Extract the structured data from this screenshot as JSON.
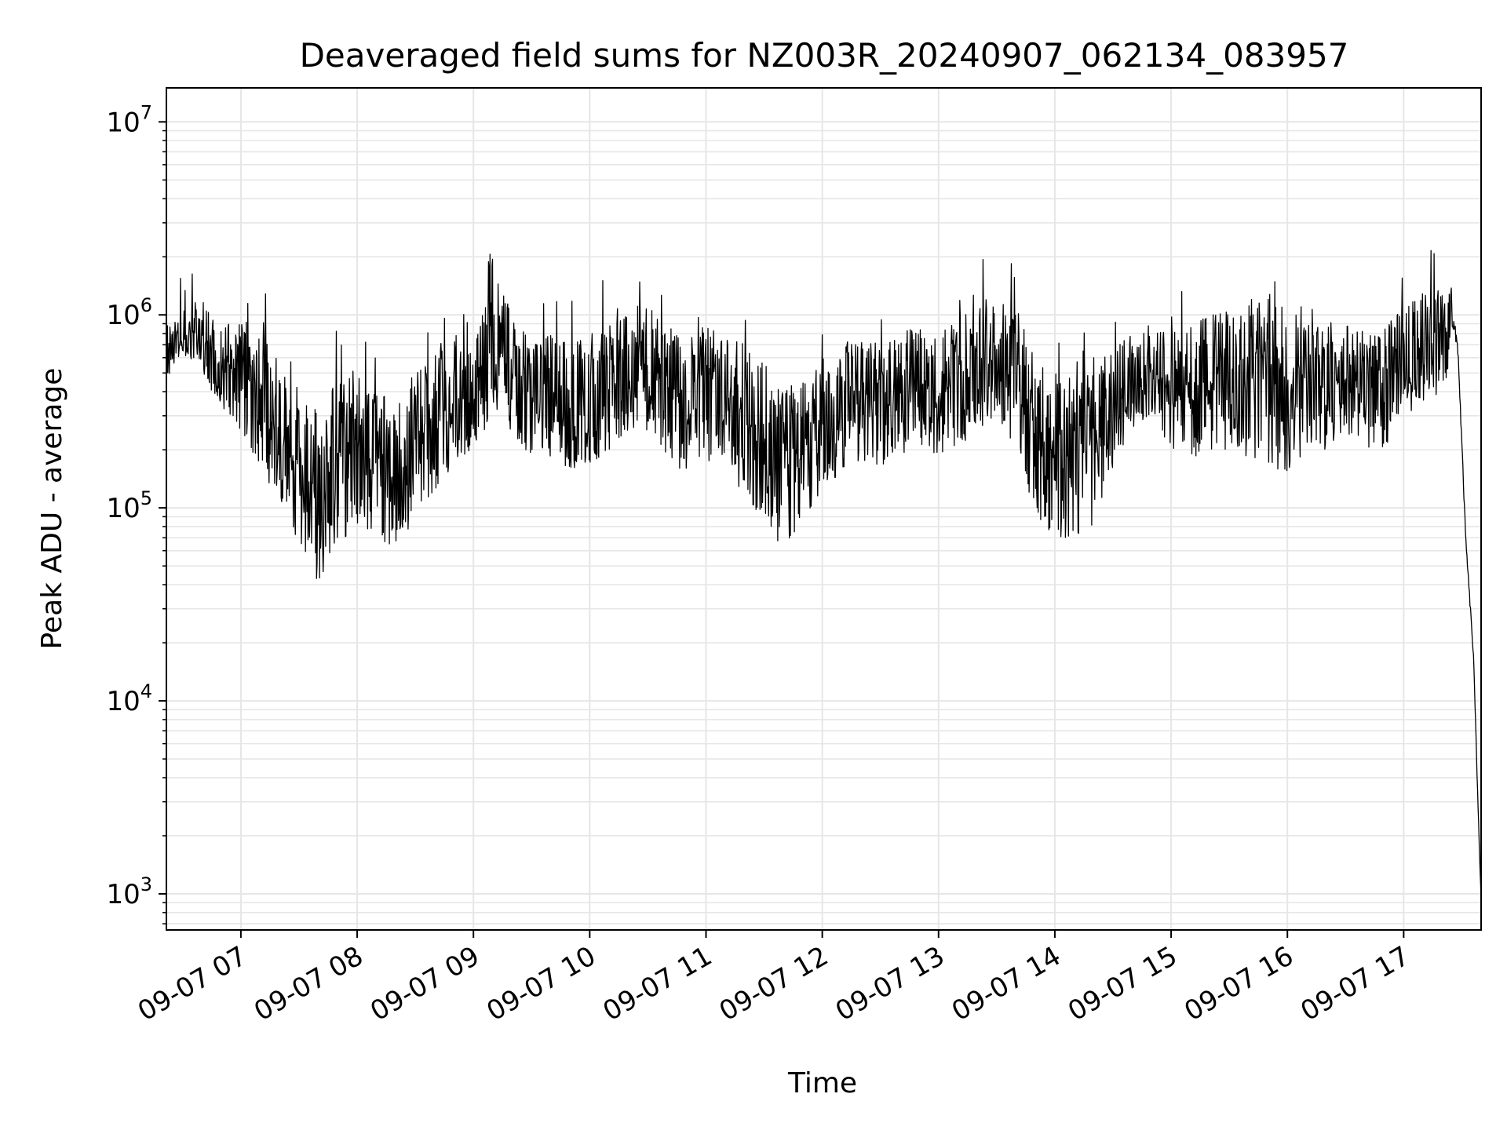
{
  "chart_data": {
    "type": "line",
    "title": "Deaveraged field sums for NZ003R_20240907_062134_083957",
    "xlabel": "Time",
    "ylabel": "Peak ADU - average",
    "yscale": "log",
    "ylim": [
      650,
      15000000
    ],
    "xlim": [
      "2024-09-07T06:21:34",
      "2024-09-07T17:39:57"
    ],
    "grid": true,
    "line_color": "#000000",
    "grid_color": "#e6e6e6",
    "x_ticks": [
      {
        "value": "2024-09-07T07:00",
        "label": "09-07 07"
      },
      {
        "value": "2024-09-07T08:00",
        "label": "09-07 08"
      },
      {
        "value": "2024-09-07T09:00",
        "label": "09-07 09"
      },
      {
        "value": "2024-09-07T10:00",
        "label": "09-07 10"
      },
      {
        "value": "2024-09-07T11:00",
        "label": "09-07 11"
      },
      {
        "value": "2024-09-07T12:00",
        "label": "09-07 12"
      },
      {
        "value": "2024-09-07T13:00",
        "label": "09-07 13"
      },
      {
        "value": "2024-09-07T14:00",
        "label": "09-07 14"
      },
      {
        "value": "2024-09-07T15:00",
        "label": "09-07 15"
      },
      {
        "value": "2024-09-07T16:00",
        "label": "09-07 16"
      },
      {
        "value": "2024-09-07T17:00",
        "label": "09-07 17"
      }
    ],
    "y_ticks": [
      {
        "value": 1000,
        "base": "10",
        "exp": "3"
      },
      {
        "value": 10000,
        "base": "10",
        "exp": "4"
      },
      {
        "value": 100000,
        "base": "10",
        "exp": "5"
      },
      {
        "value": 1000000,
        "base": "10",
        "exp": "6"
      },
      {
        "value": 10000000,
        "base": "10",
        "exp": "7"
      }
    ],
    "series": [
      {
        "x": [
          "2024-09-07T06:21:34",
          "2024-09-07T06:30",
          "2024-09-07T06:40",
          "2024-09-07T06:50",
          "2024-09-07T07:00",
          "2024-09-07T07:10",
          "2024-09-07T07:20",
          "2024-09-07T07:30",
          "2024-09-07T07:40",
          "2024-09-07T07:50",
          "2024-09-07T08:00",
          "2024-09-07T08:10",
          "2024-09-07T08:20",
          "2024-09-07T08:30",
          "2024-09-07T08:40",
          "2024-09-07T08:50",
          "2024-09-07T09:00",
          "2024-09-07T09:10",
          "2024-09-07T09:20",
          "2024-09-07T09:30",
          "2024-09-07T09:40",
          "2024-09-07T09:50",
          "2024-09-07T10:00",
          "2024-09-07T10:10",
          "2024-09-07T10:20",
          "2024-09-07T10:30",
          "2024-09-07T10:40",
          "2024-09-07T10:50",
          "2024-09-07T11:00",
          "2024-09-07T11:10",
          "2024-09-07T11:20",
          "2024-09-07T11:30",
          "2024-09-07T11:40",
          "2024-09-07T11:50",
          "2024-09-07T12:00",
          "2024-09-07T12:10",
          "2024-09-07T12:20",
          "2024-09-07T12:30",
          "2024-09-07T12:40",
          "2024-09-07T12:50",
          "2024-09-07T13:00",
          "2024-09-07T13:10",
          "2024-09-07T13:20",
          "2024-09-07T13:30",
          "2024-09-07T13:40",
          "2024-09-07T13:50",
          "2024-09-07T14:00",
          "2024-09-07T14:10",
          "2024-09-07T14:20",
          "2024-09-07T14:30",
          "2024-09-07T14:40",
          "2024-09-07T14:50",
          "2024-09-07T15:00",
          "2024-09-07T15:10",
          "2024-09-07T15:20",
          "2024-09-07T15:30",
          "2024-09-07T15:40",
          "2024-09-07T15:50",
          "2024-09-07T16:00",
          "2024-09-07T16:10",
          "2024-09-07T16:20",
          "2024-09-07T16:30",
          "2024-09-07T16:40",
          "2024-09-07T16:50",
          "2024-09-07T17:00",
          "2024-09-07T17:10",
          "2024-09-07T17:20",
          "2024-09-07T17:25",
          "2024-09-07T17:28",
          "2024-09-07T17:32",
          "2024-09-07T17:36",
          "2024-09-07T17:39:57"
        ],
        "upper": [
          900000,
          1100000,
          1200000,
          900000,
          1000000,
          800000,
          600000,
          400000,
          300000,
          500000,
          600000,
          400000,
          350000,
          500000,
          700000,
          800000,
          900000,
          2800000,
          900000,
          700000,
          800000,
          700000,
          800000,
          900000,
          1000000,
          1100000,
          900000,
          800000,
          900000,
          800000,
          700000,
          600000,
          400000,
          500000,
          600000,
          700000,
          800000,
          700000,
          800000,
          900000,
          800000,
          1000000,
          1300000,
          1200000,
          1100000,
          600000,
          500000,
          500000,
          500000,
          700000,
          800000,
          900000,
          800000,
          900000,
          1000000,
          1100000,
          1200000,
          1300000,
          1200000,
          1100000,
          1000000,
          900000,
          800000,
          900000,
          1100000,
          1300000,
          1400000,
          1500000,
          900000,
          80000,
          20000,
          1000
        ],
        "lower": [
          450000,
          600000,
          500000,
          300000,
          250000,
          150000,
          100000,
          60000,
          40000,
          60000,
          80000,
          70000,
          60000,
          90000,
          120000,
          160000,
          200000,
          300000,
          250000,
          180000,
          180000,
          160000,
          160000,
          200000,
          250000,
          250000,
          180000,
          150000,
          180000,
          150000,
          120000,
          80000,
          60000,
          80000,
          120000,
          150000,
          180000,
          160000,
          180000,
          200000,
          180000,
          200000,
          250000,
          250000,
          200000,
          90000,
          70000,
          70000,
          80000,
          150000,
          250000,
          300000,
          200000,
          180000,
          200000,
          200000,
          180000,
          150000,
          150000,
          150000,
          200000,
          250000,
          200000,
          200000,
          300000,
          350000,
          400000,
          600000,
          500000,
          60000,
          15000,
          800
        ]
      }
    ]
  }
}
